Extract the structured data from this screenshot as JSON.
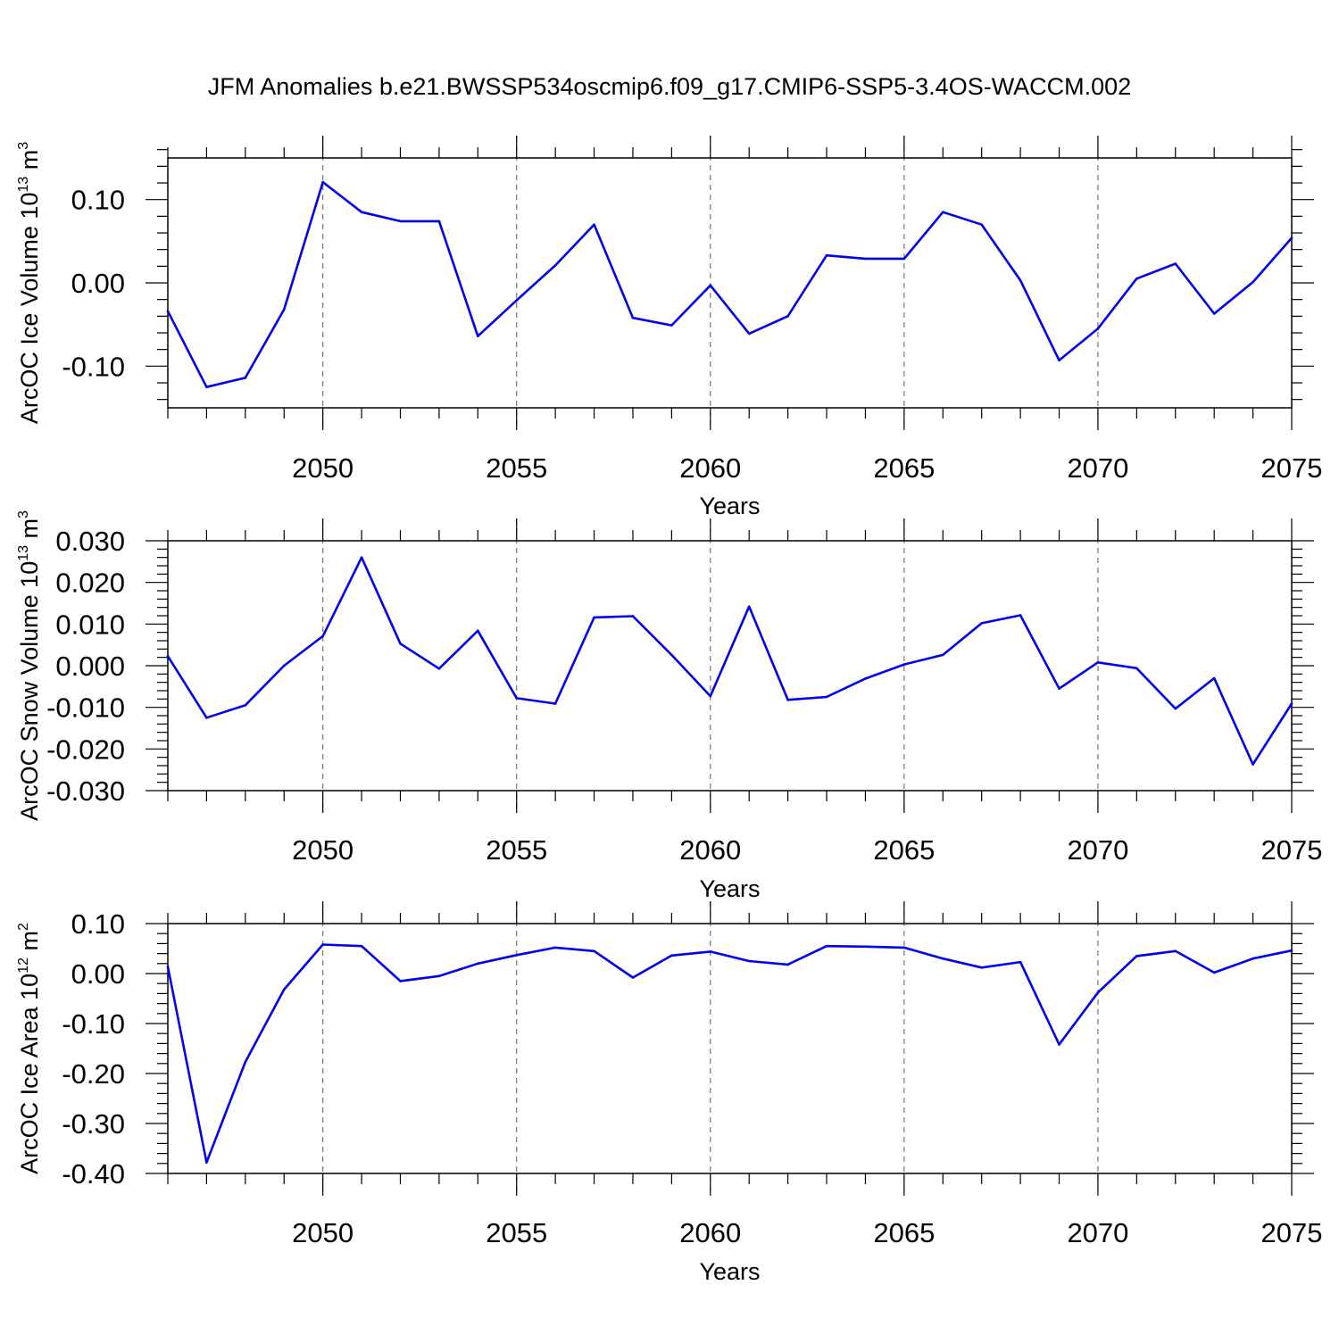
{
  "title": "JFM Anomalies b.e21.BWSSP534oscmip6.f09_g17.CMIP6-SSP5-3.4OS-WACCM.002",
  "line_color": "#0000ee",
  "chart_data": [
    {
      "type": "line",
      "ylabel": "ArcOC Ice Volume",
      "yunit_base": "10",
      "yunit_exp": "13",
      "yunit_tail": "m",
      "yunit_tail_exp": "3",
      "xlabel": "Years",
      "xlim": [
        2046,
        2075
      ],
      "ylim": [
        -0.15,
        0.15
      ],
      "xticks": [
        2050,
        2055,
        2060,
        2065,
        2070,
        2075
      ],
      "xtick_labels": [
        "2050",
        "2055",
        "2060",
        "2065",
        "2070",
        "2075"
      ],
      "yticks": [
        0.1,
        0.0,
        -0.1
      ],
      "ytick_labels": [
        "0.10",
        "0.00",
        "-0.10"
      ],
      "grid": "vertical dashed at major x ticks",
      "x": [
        2046,
        2047,
        2048,
        2049,
        2050,
        2051,
        2052,
        2053,
        2054,
        2055,
        2056,
        2057,
        2058,
        2059,
        2060,
        2061,
        2062,
        2063,
        2064,
        2065,
        2066,
        2067,
        2068,
        2069,
        2070,
        2071,
        2072,
        2073,
        2074,
        2075
      ],
      "values": [
        -0.034,
        -0.125,
        -0.114,
        -0.032,
        0.121,
        0.085,
        0.074,
        0.074,
        -0.064,
        -0.021,
        0.021,
        0.07,
        -0.042,
        -0.051,
        -0.003,
        -0.061,
        -0.04,
        0.033,
        0.029,
        0.029,
        0.085,
        0.07,
        0.003,
        -0.093,
        -0.055,
        0.005,
        0.023,
        -0.037,
        0.001,
        0.054
      ]
    },
    {
      "type": "line",
      "ylabel": "ArcOC Snow Volume",
      "yunit_base": "10",
      "yunit_exp": "13",
      "yunit_tail": "m",
      "yunit_tail_exp": "3",
      "xlabel": "Years",
      "xlim": [
        2046,
        2075
      ],
      "ylim": [
        -0.03,
        0.03
      ],
      "xticks": [
        2050,
        2055,
        2060,
        2065,
        2070,
        2075
      ],
      "xtick_labels": [
        "2050",
        "2055",
        "2060",
        "2065",
        "2070",
        "2075"
      ],
      "yticks": [
        0.03,
        0.02,
        0.01,
        0.0,
        -0.01,
        -0.02,
        -0.03
      ],
      "ytick_labels": [
        "0.030",
        "0.020",
        "0.010",
        "0.000",
        "-0.010",
        "-0.020",
        "-0.030"
      ],
      "grid": "vertical dashed at major x ticks",
      "x": [
        2046,
        2047,
        2048,
        2049,
        2050,
        2051,
        2052,
        2053,
        2054,
        2055,
        2056,
        2057,
        2058,
        2059,
        2060,
        2061,
        2062,
        2063,
        2064,
        2065,
        2066,
        2067,
        2068,
        2069,
        2070,
        2071,
        2072,
        2073,
        2074,
        2075
      ],
      "values": [
        0.0023,
        -0.0125,
        -0.0095,
        0.0,
        0.0071,
        0.026,
        0.0053,
        -0.0007,
        0.0084,
        -0.0078,
        -0.0091,
        0.0116,
        0.0119,
        0.0026,
        -0.0073,
        0.0142,
        -0.0082,
        -0.0075,
        -0.0031,
        0.0003,
        0.0026,
        0.0102,
        0.0121,
        -0.0055,
        0.0008,
        -0.0006,
        -0.0103,
        -0.003,
        -0.0237,
        -0.0091
      ]
    },
    {
      "type": "line",
      "ylabel": "ArcOC Ice Area",
      "yunit_base": "10",
      "yunit_exp": "12",
      "yunit_tail": "m",
      "yunit_tail_exp": "2",
      "xlabel": "Years",
      "xlim": [
        2046,
        2075
      ],
      "ylim": [
        -0.4,
        0.1
      ],
      "xticks": [
        2050,
        2055,
        2060,
        2065,
        2070,
        2075
      ],
      "xtick_labels": [
        "2050",
        "2055",
        "2060",
        "2065",
        "2070",
        "2075"
      ],
      "yticks": [
        0.1,
        0.0,
        -0.1,
        -0.2,
        -0.3,
        -0.4
      ],
      "ytick_labels": [
        "0.10",
        "0.00",
        "-0.10",
        "-0.20",
        "-0.30",
        "-0.40"
      ],
      "grid": "vertical dashed at major x ticks",
      "x": [
        2046,
        2047,
        2048,
        2049,
        2050,
        2051,
        2052,
        2053,
        2054,
        2055,
        2056,
        2057,
        2058,
        2059,
        2060,
        2061,
        2062,
        2063,
        2064,
        2065,
        2066,
        2067,
        2068,
        2069,
        2070,
        2071,
        2072,
        2073,
        2074,
        2075
      ],
      "values": [
        0.014,
        -0.378,
        -0.177,
        -0.032,
        0.058,
        0.055,
        -0.015,
        -0.005,
        0.02,
        0.037,
        0.052,
        0.045,
        -0.008,
        0.036,
        0.044,
        0.025,
        0.018,
        0.055,
        0.054,
        0.052,
        0.03,
        0.012,
        0.023,
        -0.142,
        -0.038,
        0.035,
        0.045,
        0.002,
        0.03,
        0.046
      ]
    }
  ]
}
